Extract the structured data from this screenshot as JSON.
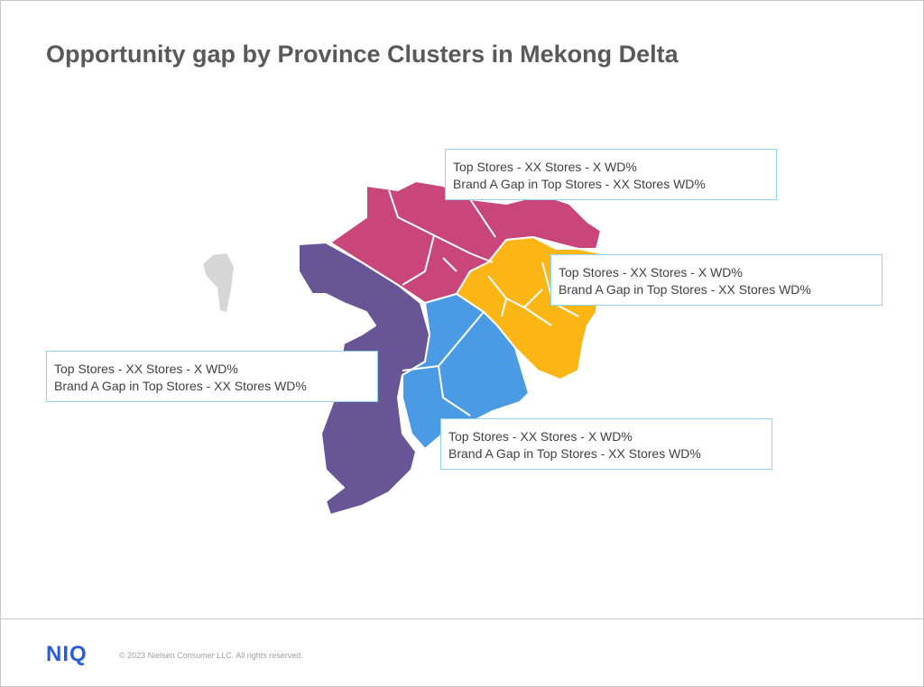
{
  "title": "Opportunity gap by Province Clusters in Mekong Delta",
  "callouts": [
    {
      "line1": "Top Stores - XX Stores - X WD%",
      "line2": "Brand A Gap in Top Stores - XX Stores WD%"
    },
    {
      "line1": "Top Stores - XX Stores - X WD%",
      "line2": "Brand A Gap in Top Stores - XX Stores WD%"
    },
    {
      "line1": "Top Stores - XX Stores - X WD%",
      "line2": "Brand A Gap in Top Stores - XX Stores WD%"
    },
    {
      "line1": "Top Stores - XX Stores - X WD%",
      "line2": "Brand A Gap in Top Stores - XX Stores WD%"
    }
  ],
  "footer": {
    "logo": "NIQ",
    "copyright": "© 2023 Nielsen Consumer LLC. All rights reserved."
  }
}
